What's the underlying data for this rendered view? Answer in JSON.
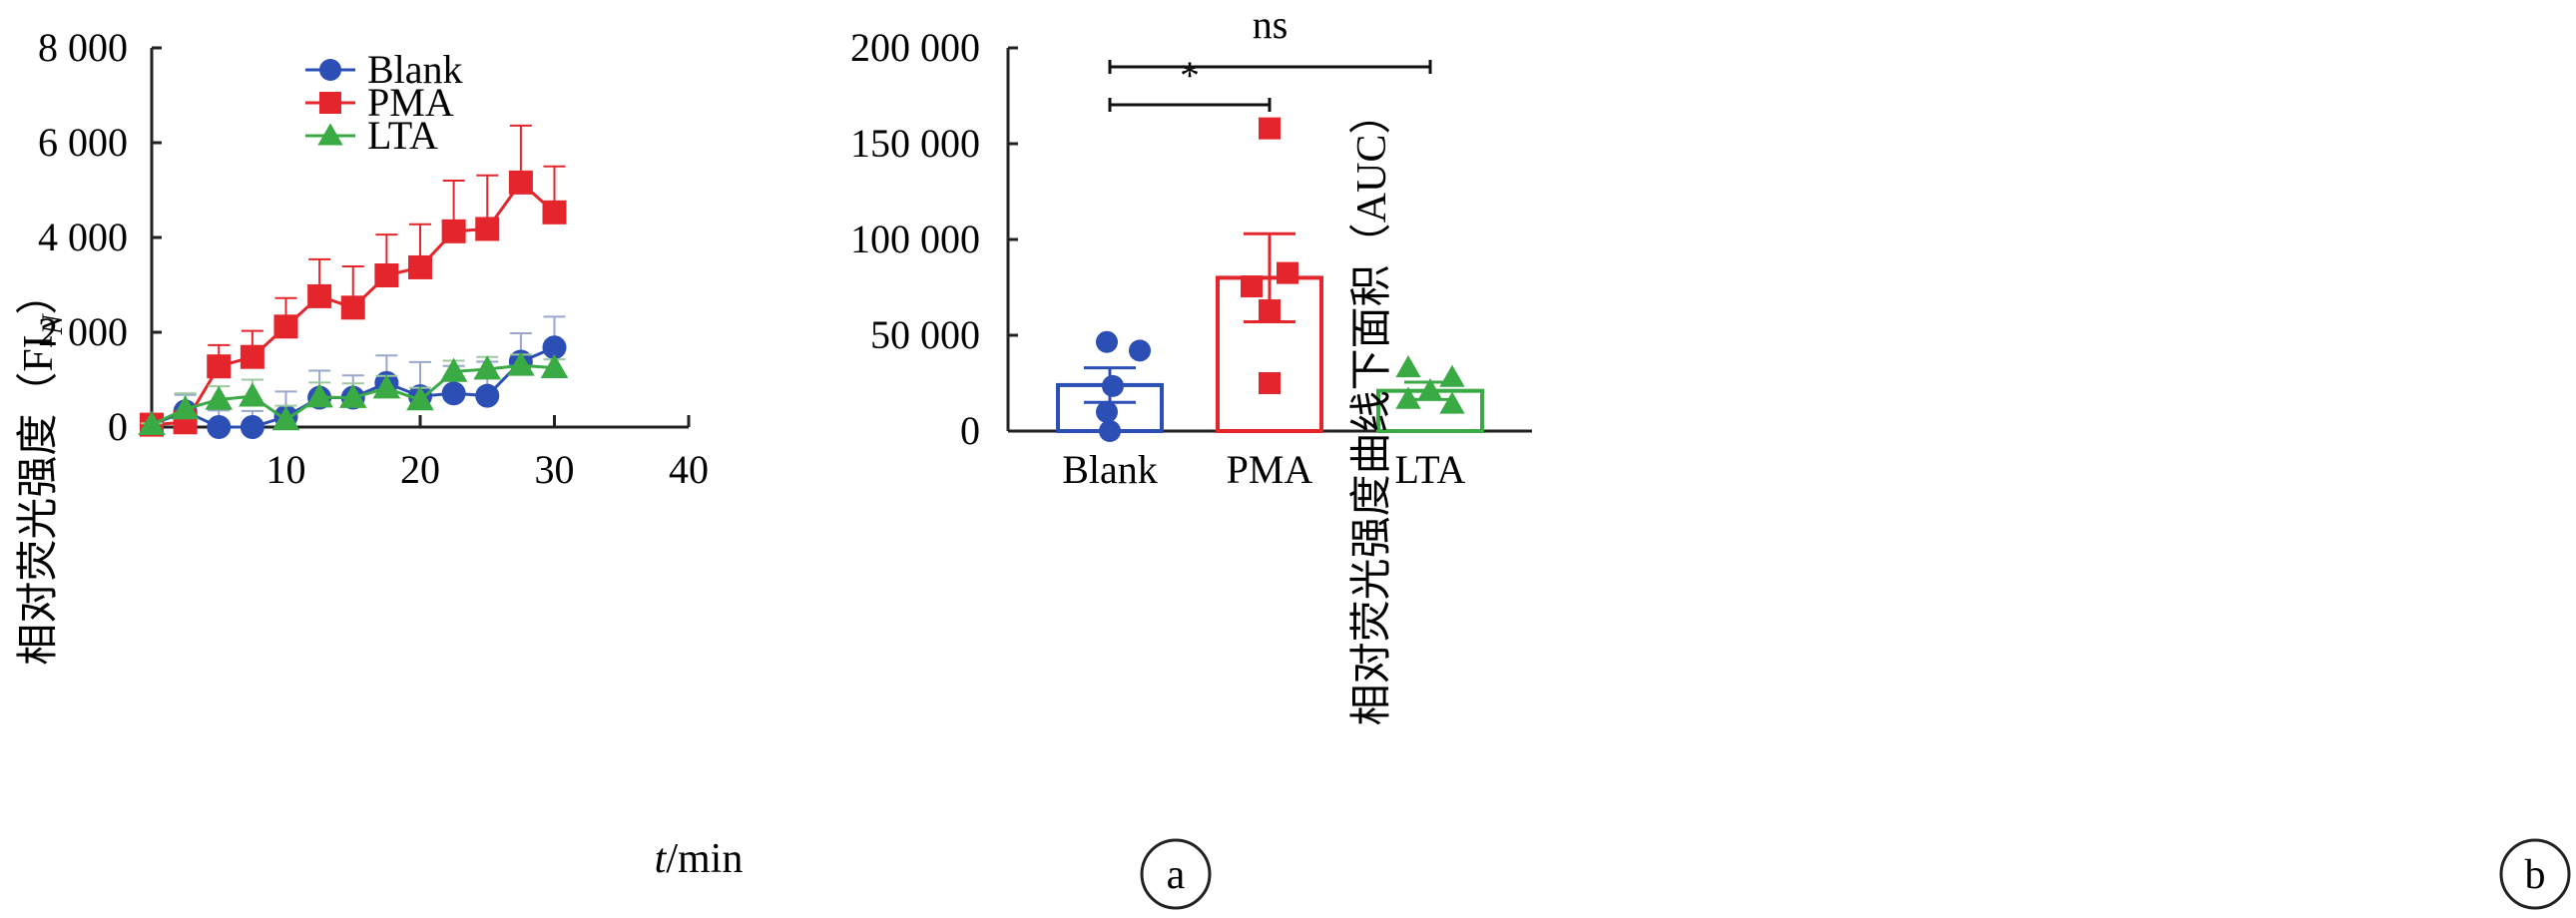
{
  "chart_data": [
    {
      "type": "line",
      "ylabel": "相对荧光强度（FIN）",
      "ylabel_main": "相对荧光强度（FI",
      "ylabel_sub": "N",
      "ylabel_end": "）",
      "xlabel_italic": "t",
      "xlabel_rest": "/min",
      "xlim": [
        0,
        40
      ],
      "ylim": [
        0,
        8000
      ],
      "xticks": [
        10,
        20,
        30,
        40
      ],
      "yticks": [
        0,
        2000,
        4000,
        6000,
        8000
      ],
      "ytick_labels": [
        "0",
        "2 000",
        "4 000",
        "6 000",
        "8 000"
      ],
      "panel_label": "a",
      "legend_position": "top-left",
      "series": [
        {
          "name": "Blank",
          "marker": "circle",
          "color": "#2c4fb5",
          "x": [
            0,
            2.5,
            5,
            7.5,
            10,
            12.5,
            15,
            17.5,
            20,
            22.5,
            25,
            27.5,
            30
          ],
          "y": [
            50,
            330,
            0,
            0,
            220,
            620,
            620,
            930,
            650,
            710,
            660,
            1380,
            1680
          ],
          "err": [
            30,
            350,
            350,
            340,
            530,
            570,
            470,
            580,
            720,
            580,
            720,
            600,
            650
          ]
        },
        {
          "name": "PMA",
          "marker": "square",
          "color": "#e4262c",
          "x": [
            0,
            2.5,
            5,
            7.5,
            10,
            12.5,
            15,
            17.5,
            20,
            22.5,
            25,
            27.5,
            30
          ],
          "y": [
            50,
            100,
            1280,
            1480,
            2120,
            2760,
            2520,
            3200,
            3370,
            4130,
            4180,
            5160,
            4530
          ],
          "err": [
            30,
            60,
            450,
            550,
            600,
            780,
            870,
            860,
            910,
            1070,
            1130,
            1200,
            970
          ]
        },
        {
          "name": "LTA",
          "marker": "triangle",
          "color": "#3aaa44",
          "x": [
            0,
            2.5,
            5,
            7.5,
            10,
            12.5,
            15,
            17.5,
            20,
            22.5,
            25,
            27.5,
            30
          ],
          "y": [
            50,
            380,
            580,
            650,
            150,
            630,
            620,
            820,
            570,
            1170,
            1220,
            1300,
            1250
          ],
          "err": [
            30,
            330,
            280,
            350,
            300,
            310,
            300,
            260,
            260,
            230,
            260,
            230,
            180
          ]
        }
      ]
    },
    {
      "type": "bar",
      "ylabel": "相对荧光强度曲线下面积（AUC）",
      "ylim": [
        0,
        200000
      ],
      "yticks": [
        0,
        50000,
        100000,
        150000,
        200000
      ],
      "ytick_labels": [
        "0",
        "50 000",
        "100 000",
        "150 000",
        "200 000"
      ],
      "categories": [
        "Blank",
        "PMA",
        "LTA"
      ],
      "colors": [
        "#2c4fb5",
        "#e4262c",
        "#3aaa44"
      ],
      "markers": [
        "circle",
        "square",
        "triangle"
      ],
      "means": [
        24000,
        80000,
        21000
      ],
      "sem": [
        9000,
        23000,
        4500
      ],
      "points": [
        [
          46500,
          42000,
          23500,
          10000,
          0
        ],
        [
          158000,
          82500,
          75500,
          63000,
          25000
        ],
        [
          33000,
          28000,
          21000,
          16500,
          14000
        ]
      ],
      "significance": [
        {
          "from": "Blank",
          "to": "PMA",
          "label": "*"
        },
        {
          "from": "Blank",
          "to": "LTA",
          "label": "ns"
        }
      ],
      "panel_label": "b"
    }
  ]
}
